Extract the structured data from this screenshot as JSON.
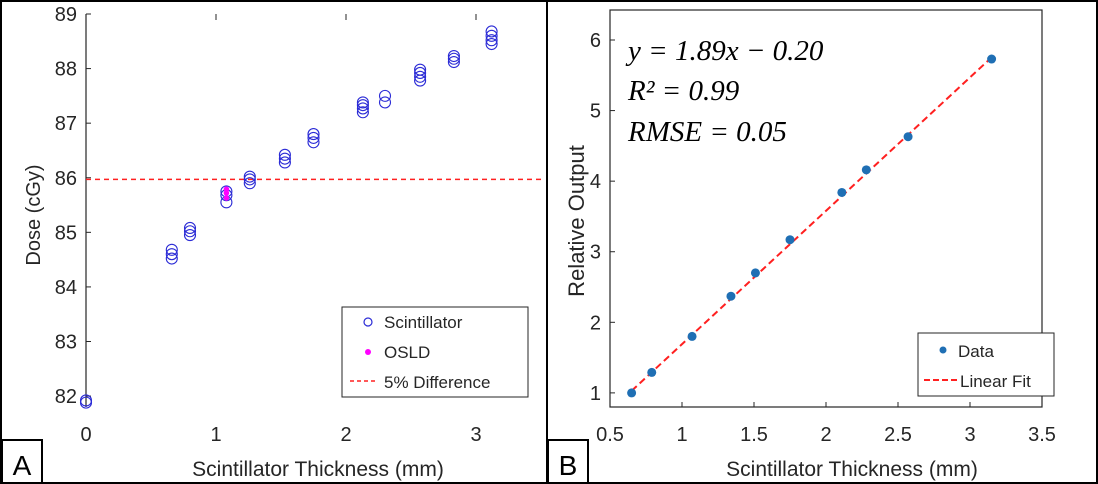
{
  "colors": {
    "scatter_marker": "#2b2bd6",
    "osld_marker": "#ff00ff",
    "dashed_line": "#ff2020",
    "data_marker": "#1f6fb4",
    "fit_line": "#ff2020",
    "axis": "#262626"
  },
  "chart_data": [
    {
      "panel": "A",
      "type": "scatter",
      "xlabel": "Scintillator Thickness (mm)",
      "ylabel": "Dose (cGy)",
      "xlim": [
        0,
        3.5
      ],
      "ylim": [
        81.8,
        89
      ],
      "xticks": [
        "0",
        "1",
        "2",
        "3"
      ],
      "yticks": [
        "82",
        "83",
        "84",
        "85",
        "86",
        "87",
        "88",
        "89"
      ],
      "reference_line": {
        "y": 85.97,
        "label": "5% Difference"
      },
      "legend": {
        "position": "bottom-right",
        "entries": [
          "Scintillator",
          "OSLD",
          "5% Difference"
        ]
      },
      "series": [
        {
          "name": "Scintillator",
          "marker": "open-circle",
          "points": [
            [
              0,
              81.88
            ],
            [
              0,
              81.92
            ],
            [
              0.66,
              84.52
            ],
            [
              0.66,
              84.6
            ],
            [
              0.66,
              84.68
            ],
            [
              0.8,
              84.95
            ],
            [
              0.8,
              85.02
            ],
            [
              0.8,
              85.08
            ],
            [
              1.08,
              85.55
            ],
            [
              1.08,
              85.68
            ],
            [
              1.08,
              85.75
            ],
            [
              1.26,
              85.9
            ],
            [
              1.26,
              85.97
            ],
            [
              1.26,
              86.02
            ],
            [
              1.53,
              86.28
            ],
            [
              1.53,
              86.35
            ],
            [
              1.53,
              86.42
            ],
            [
              1.75,
              86.65
            ],
            [
              1.75,
              86.73
            ],
            [
              1.75,
              86.8
            ],
            [
              2.13,
              87.2
            ],
            [
              2.13,
              87.27
            ],
            [
              2.13,
              87.33
            ],
            [
              2.13,
              87.38
            ],
            [
              2.3,
              87.38
            ],
            [
              2.3,
              87.5
            ],
            [
              2.57,
              87.78
            ],
            [
              2.57,
              87.85
            ],
            [
              2.57,
              87.92
            ],
            [
              2.57,
              87.98
            ],
            [
              2.83,
              88.12
            ],
            [
              2.83,
              88.18
            ],
            [
              2.83,
              88.23
            ],
            [
              3.12,
              88.45
            ],
            [
              3.12,
              88.52
            ],
            [
              3.12,
              88.6
            ],
            [
              3.12,
              88.68
            ]
          ]
        },
        {
          "name": "OSLD",
          "marker": "filled-dot",
          "points": [
            [
              1.08,
              85.63
            ],
            [
              1.08,
              85.72
            ],
            [
              1.08,
              85.79
            ]
          ]
        }
      ],
      "panel_label": "A"
    },
    {
      "panel": "B",
      "type": "scatter",
      "xlabel": "Scintillator Thickness (mm)",
      "ylabel": "Relative Output",
      "xlim": [
        0.5,
        3.5
      ],
      "ylim": [
        0.8,
        6
      ],
      "xticks": [
        "0.5",
        "1",
        "1.5",
        "2",
        "2.5",
        "3",
        "3.5"
      ],
      "yticks": [
        "1",
        "2",
        "3",
        "4",
        "5",
        "6"
      ],
      "legend": {
        "position": "bottom-right",
        "entries": [
          "Data",
          "Linear Fit"
        ]
      },
      "annotations": [
        "y = 1.89x − 0.20",
        "R² = 0.99",
        "RMSE = 0.05"
      ],
      "series": [
        {
          "name": "Data",
          "marker": "filled-dot",
          "points": [
            [
              0.65,
              1.0
            ],
            [
              0.79,
              1.29
            ],
            [
              1.07,
              1.8
            ],
            [
              1.34,
              2.37
            ],
            [
              1.51,
              2.7
            ],
            [
              1.75,
              3.17
            ],
            [
              2.11,
              3.84
            ],
            [
              2.28,
              4.16
            ],
            [
              2.57,
              4.63
            ],
            [
              3.15,
              5.73
            ]
          ]
        },
        {
          "name": "Linear Fit",
          "type": "dashed-line",
          "slope": 1.89,
          "intercept": -0.2,
          "x_range": [
            0.65,
            3.15
          ]
        }
      ],
      "panel_label": "B"
    }
  ]
}
